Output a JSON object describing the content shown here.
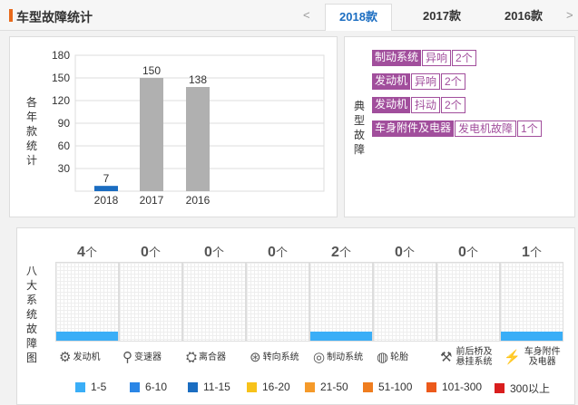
{
  "header": {
    "title": "车型故障统计",
    "prev": "<",
    "next": ">",
    "tabs": [
      "2018款",
      "2017款",
      "2016款"
    ]
  },
  "chart_data": {
    "type": "bar",
    "categories": [
      "2018",
      "2017",
      "2016"
    ],
    "values": [
      7,
      150,
      138
    ],
    "ylabel": "各年款统计",
    "yticks": [
      30,
      60,
      90,
      120,
      150,
      180
    ],
    "ylim": [
      0,
      180
    ],
    "colors": [
      "#1b6dc1",
      "#b0b0b0",
      "#b0b0b0"
    ]
  },
  "typical": {
    "label": "典型故障",
    "rows": [
      {
        "cat": "制动系统",
        "sym": "异响",
        "count": "2个"
      },
      {
        "cat": "发动机",
        "sym": "异响",
        "count": "2个"
      },
      {
        "cat": "发动机",
        "sym": "抖动",
        "count": "2个"
      },
      {
        "cat": "车身附件及电器",
        "sym": "发电机故障",
        "count": "1个"
      }
    ]
  },
  "eight": {
    "label": "八大系统故障图",
    "counts": [
      {
        "n": "4",
        "u": "个"
      },
      {
        "n": "0",
        "u": "个"
      },
      {
        "n": "0",
        "u": "个"
      },
      {
        "n": "0",
        "u": "个"
      },
      {
        "n": "2",
        "u": "个"
      },
      {
        "n": "0",
        "u": "个"
      },
      {
        "n": "0",
        "u": "个"
      },
      {
        "n": "1",
        "u": "个"
      }
    ],
    "filled": [
      1,
      0,
      0,
      0,
      1,
      0,
      0,
      1
    ],
    "systems": [
      {
        "name": "发动机",
        "icon": "engine-icon",
        "glyph": "⚙"
      },
      {
        "name": "变速器",
        "icon": "gear-shifter-icon",
        "glyph": "⚲"
      },
      {
        "name": "离合器",
        "icon": "clutch-icon",
        "glyph": "⛭"
      },
      {
        "name": "转向系统",
        "icon": "steering-wheel-icon",
        "glyph": "⊛"
      },
      {
        "name": "制动系统",
        "icon": "brake-disc-icon",
        "glyph": "◎"
      },
      {
        "name": "轮胎",
        "icon": "tire-icon",
        "glyph": "◍"
      },
      {
        "name": "前后桥及悬挂系统",
        "icon": "suspension-icon",
        "glyph": "⚒"
      },
      {
        "name": "车身附件及电器",
        "icon": "battery-icon",
        "glyph": "⚡"
      }
    ]
  },
  "legend": [
    {
      "label": "1-5",
      "color": "#3aaef7"
    },
    {
      "label": "6-10",
      "color": "#2b86e6"
    },
    {
      "label": "11-15",
      "color": "#1b6dc1"
    },
    {
      "label": "16-20",
      "color": "#f7c21a"
    },
    {
      "label": "21-50",
      "color": "#f59a2a"
    },
    {
      "label": "51-100",
      "color": "#ef7d1f"
    },
    {
      "label": "101-300",
      "color": "#ec5a1b"
    },
    {
      "label": "300以上",
      "color": "#d91e1e"
    }
  ]
}
